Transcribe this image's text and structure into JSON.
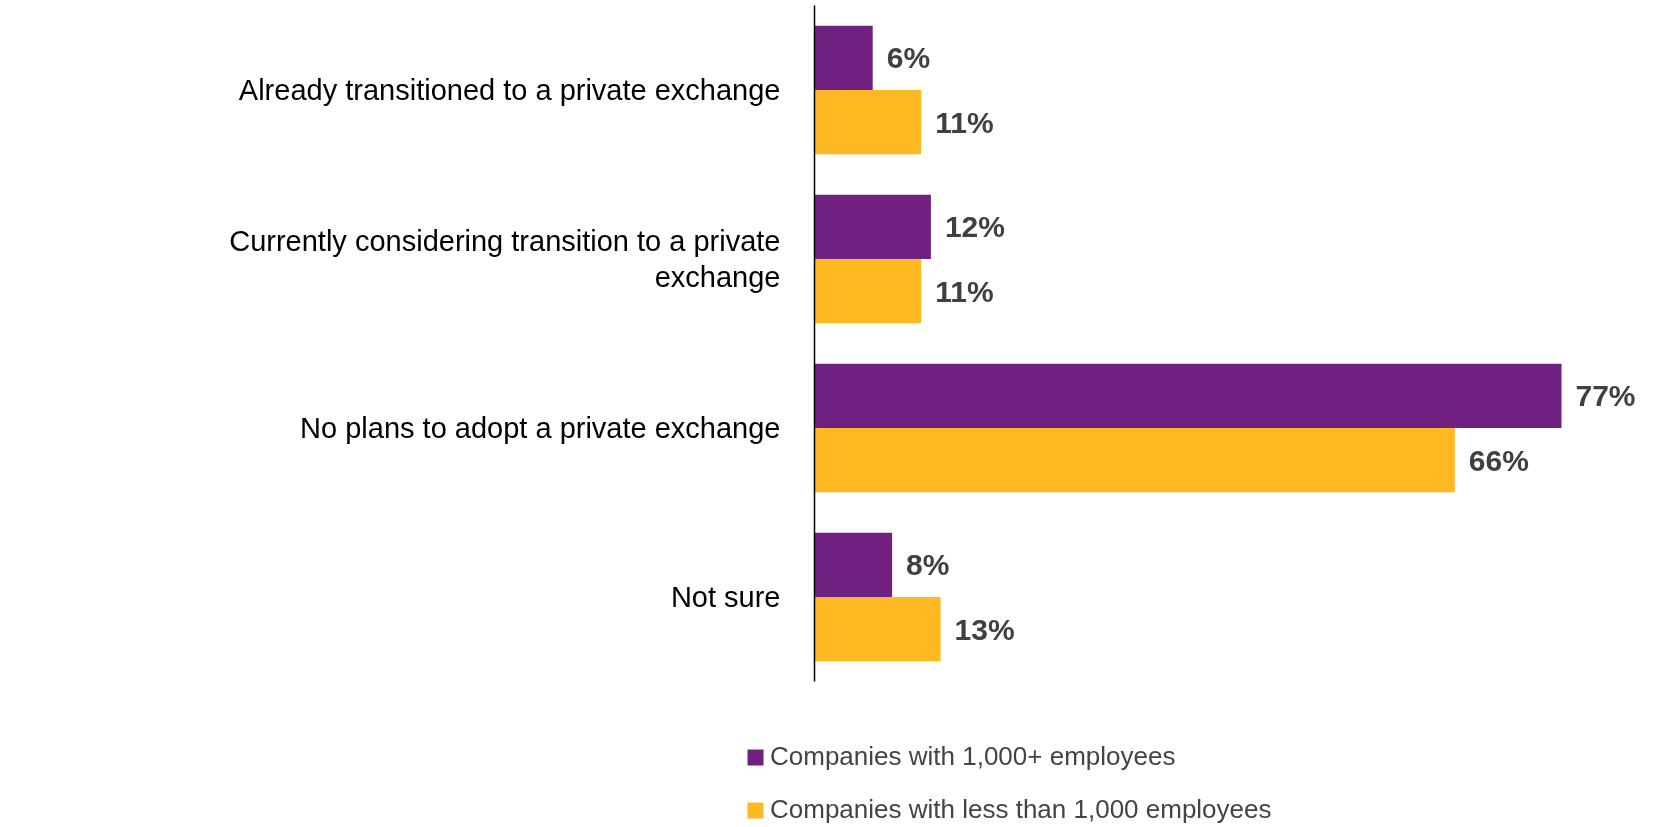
{
  "chart_data": {
    "type": "bar",
    "orientation": "horizontal",
    "categories": [
      "Already transitioned to a private exchange",
      "Currently considering transition to a private exchange",
      "No plans to adopt a private exchange",
      "Not sure"
    ],
    "series": [
      {
        "name": "Companies with 1,000+ employees",
        "color": "#6f2080",
        "values": [
          6,
          12,
          77,
          8
        ],
        "value_labels": [
          "6%",
          "12%",
          "77%",
          "8%"
        ]
      },
      {
        "name": "Companies with less than 1,000 employees",
        "color": "#fdb822",
        "values": [
          11,
          11,
          66,
          13
        ],
        "value_labels": [
          "11%",
          "11%",
          "66%",
          "13%"
        ]
      }
    ],
    "legend": "bottom",
    "grid": false
  }
}
